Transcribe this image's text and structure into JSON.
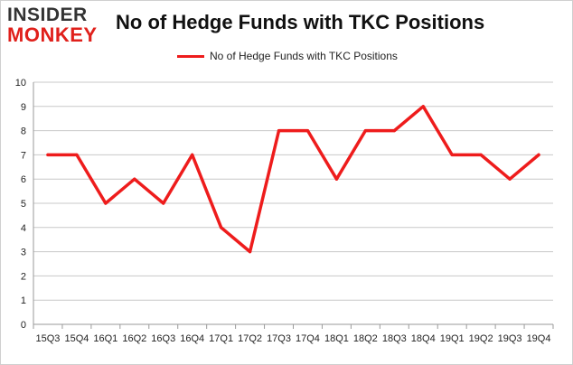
{
  "logo": {
    "line1": "INSIDER",
    "line2": "MONKEY"
  },
  "colors": {
    "series": "#ee1c1c",
    "grid": "#c8c8c8",
    "axis": "#9a9a9a",
    "logo_red": "#e0201b",
    "logo_dark": "#333333"
  },
  "chart_data": {
    "type": "line",
    "title": "No of Hedge Funds with TKC Positions",
    "xlabel": "",
    "ylabel": "",
    "categories": [
      "15Q3",
      "15Q4",
      "16Q1",
      "16Q2",
      "16Q3",
      "16Q4",
      "17Q1",
      "17Q2",
      "17Q3",
      "17Q4",
      "18Q1",
      "18Q2",
      "18Q3",
      "18Q4",
      "19Q1",
      "19Q2",
      "19Q3",
      "19Q4"
    ],
    "series": [
      {
        "name": "No of Hedge Funds with TKC Positions",
        "values": [
          7,
          7,
          5,
          6,
          5,
          7,
          4,
          3,
          8,
          8,
          6,
          8,
          8,
          9,
          7,
          7,
          6,
          7
        ]
      }
    ],
    "ylim": [
      0,
      10
    ],
    "yticks": [
      0,
      1,
      2,
      3,
      4,
      5,
      6,
      7,
      8,
      9,
      10
    ],
    "grid": true,
    "legend": "top-center"
  }
}
